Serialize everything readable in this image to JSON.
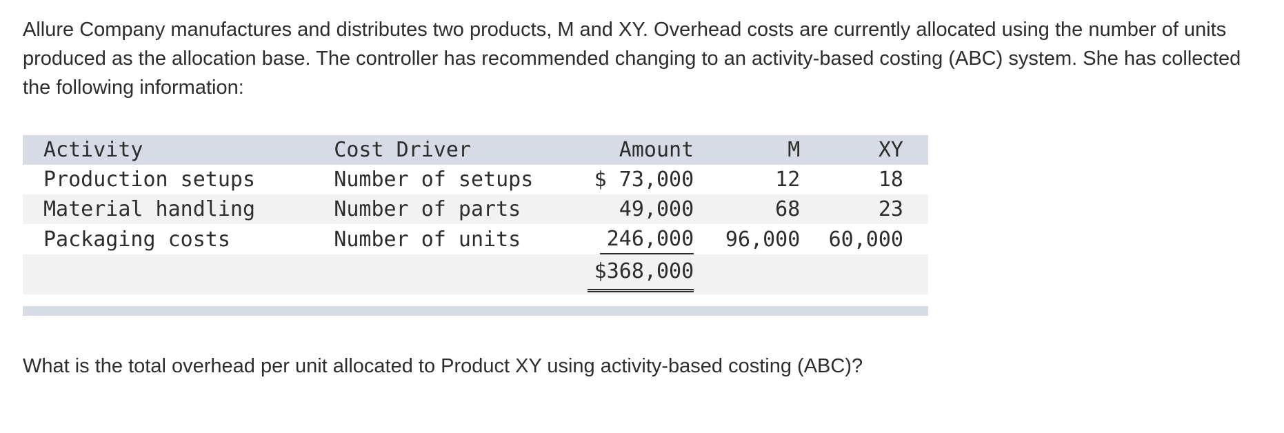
{
  "problem": {
    "intro": "Allure Company manufactures and distributes two products, M and XY. Overhead costs are currently allocated using the number of units produced as the allocation base. The controller has recommended changing to an activity-based costing (ABC) system. She has collected the following information:",
    "question": "What is the total overhead per unit allocated to Product XY using activity-based costing (ABC)?"
  },
  "table": {
    "headers": {
      "activity": "Activity",
      "driver": "Cost Driver",
      "amount": "Amount",
      "m": "M",
      "xy": "XY"
    },
    "rows": [
      {
        "activity": "Production setups",
        "driver": "Number of setups",
        "amount": "$ 73,000",
        "m": "12",
        "xy": "18"
      },
      {
        "activity": "Material handling",
        "driver": "Number of parts",
        "amount": "49,000",
        "m": "68",
        "xy": "23"
      },
      {
        "activity": "Packaging costs",
        "driver": "Number of units",
        "amount": "246,000",
        "m": "96,000",
        "xy": "60,000"
      }
    ],
    "total_amount": "$368,000"
  }
}
